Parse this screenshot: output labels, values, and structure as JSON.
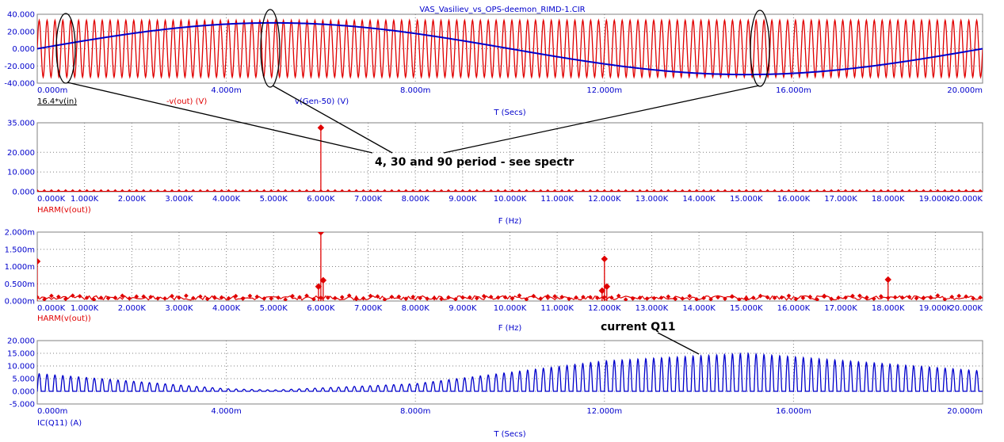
{
  "window_title": "VAS_Vasiliev_vs_OPS-deemon_RIMD-1.CIR",
  "colors": {
    "red_trace": "#e00000",
    "blue_trace": "#0000cc",
    "axis_text": "#0000cc",
    "grid": "#808080",
    "annotation": "#000000"
  },
  "annotations": {
    "period_note": "4, 30 and 90 period - see spectr",
    "current_note": "current Q11"
  },
  "chart_data": [
    {
      "type": "line",
      "xlabel": "T (Secs)",
      "xlim": [
        0,
        0.02
      ],
      "x_ticks": [
        "0.000m",
        "4.000m",
        "8.000m",
        "12.000m",
        "16.000m",
        "20.000m"
      ],
      "ylim": [
        -40,
        40
      ],
      "y_ticks": [
        "40.000",
        "20.000",
        "0.000",
        "-20.000",
        "-40.000"
      ],
      "legend": [
        "16.4*v(in)",
        "-v(out) (V)",
        "v(Gen-50) (V)"
      ],
      "series": [
        {
          "name": "-v(out) (V)",
          "color": "#e00000",
          "shape": "sine",
          "amplitude": 33,
          "frequency_hz": 6000
        },
        {
          "name": "v(Gen-50) (V)",
          "color": "#0000cc",
          "shape": "sine",
          "amplitude": 30,
          "frequency_hz": 50
        }
      ]
    },
    {
      "type": "bar",
      "xlabel": "F (Hz)",
      "xlim": [
        0,
        20000
      ],
      "x_ticks": [
        "0.000K",
        "1.000K",
        "2.000K",
        "3.000K",
        "4.000K",
        "5.000K",
        "6.000K",
        "7.000K",
        "8.000K",
        "9.000K",
        "10.000K",
        "11.000K",
        "12.000K",
        "13.000K",
        "14.000K",
        "15.000K",
        "16.000K",
        "17.000K",
        "18.000K",
        "19.000K",
        "20.000K"
      ],
      "ylim": [
        0,
        35
      ],
      "y_ticks": [
        "35.000",
        "20.000",
        "10.000",
        "0.000"
      ],
      "legend": [
        "HARM(v(out))"
      ],
      "series": [
        {
          "name": "HARM(v(out))",
          "color": "#e00000",
          "points": [
            [
              6000,
              32.5
            ]
          ]
        }
      ]
    },
    {
      "type": "bar",
      "xlabel": "F (Hz)",
      "xlim": [
        0,
        20000
      ],
      "x_ticks": [
        "0.000K",
        "1.000K",
        "2.000K",
        "3.000K",
        "4.000K",
        "5.000K",
        "6.000K",
        "7.000K",
        "8.000K",
        "9.000K",
        "10.000K",
        "11.000K",
        "12.000K",
        "13.000K",
        "14.000K",
        "15.000K",
        "16.000K",
        "17.000K",
        "18.000K",
        "19.000K",
        "20.000K"
      ],
      "ylim": [
        0,
        2.0
      ],
      "y_unit": "m",
      "y_ticks": [
        "2.000m",
        "1.500m",
        "1.000m",
        "0.500m",
        "0.000m"
      ],
      "legend": [
        "HARM(v(out))"
      ],
      "series": [
        {
          "name": "HARM(v(out))",
          "color": "#e00000",
          "points": [
            [
              0,
              1.15
            ],
            [
              5950,
              0.42
            ],
            [
              6000,
              2.0
            ],
            [
              6050,
              0.6
            ],
            [
              11950,
              0.3
            ],
            [
              12000,
              1.22
            ],
            [
              12050,
              0.42
            ],
            [
              18000,
              0.62
            ]
          ]
        }
      ]
    },
    {
      "type": "line",
      "xlabel": "T (Secs)",
      "xlim": [
        0,
        0.02
      ],
      "x_ticks": [
        "0.000m",
        "4.000m",
        "8.000m",
        "12.000m",
        "16.000m",
        "20.000m"
      ],
      "ylim": [
        -5,
        20
      ],
      "y_ticks": [
        "20.000",
        "15.000",
        "10.000",
        "5.000",
        "0.000",
        "-5.000"
      ],
      "legend": [
        "IC(Q11) (A)"
      ],
      "series": [
        {
          "name": "IC(Q11) (A)",
          "color": "#0000cc",
          "envelope_x": [
            0,
            0.004,
            0.005,
            0.008,
            0.012,
            0.015,
            0.02
          ],
          "envelope_y": [
            7,
            1.0,
            0.5,
            3,
            12,
            15,
            8
          ]
        }
      ]
    }
  ]
}
